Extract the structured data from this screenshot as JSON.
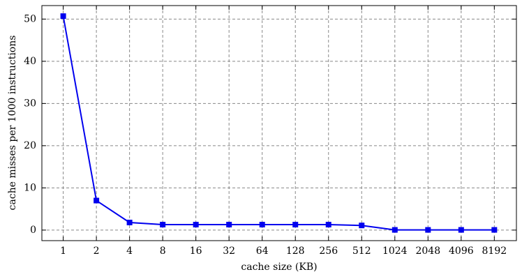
{
  "chart_data": {
    "type": "line",
    "x_label": "cache size (KB)",
    "y_label": "cache misses per 1000 instructions",
    "x": [
      1,
      2,
      4,
      8,
      16,
      32,
      64,
      128,
      256,
      512,
      1024,
      2048,
      4096,
      8192
    ],
    "series": [
      {
        "color": "#0000ee",
        "values": [
          50.7,
          7.0,
          1.8,
          1.3,
          1.3,
          1.3,
          1.3,
          1.3,
          1.3,
          1.1,
          0.05,
          0.05,
          0.05,
          0.05
        ]
      }
    ],
    "xscale": "log2",
    "xlim": [
      0.64,
      13000
    ],
    "xticks": [
      1,
      2,
      4,
      8,
      16,
      32,
      64,
      128,
      256,
      512,
      1024,
      2048,
      4096,
      8192
    ],
    "ylim": [
      -2.5,
      53.2
    ],
    "yticks": [
      0,
      10,
      20,
      30,
      40,
      50
    ],
    "grid": true,
    "marker": "square"
  }
}
